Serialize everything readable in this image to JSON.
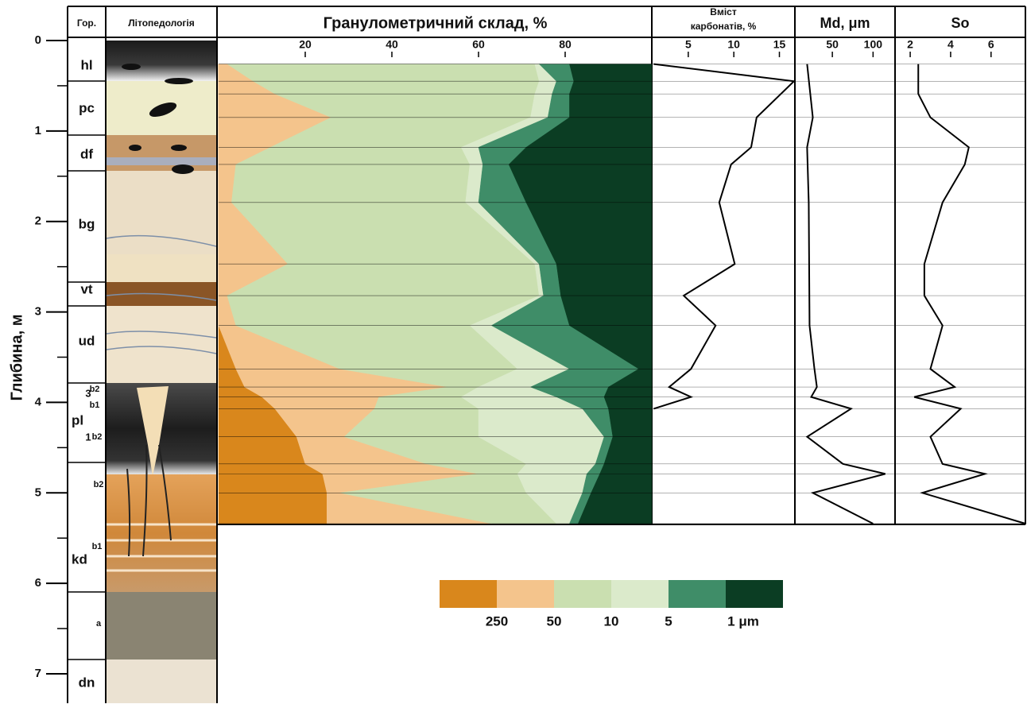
{
  "header": {
    "horizon": "Гор.",
    "lithology": "Літопедологія"
  },
  "depth_axis": {
    "label": "Глибина, м",
    "ylim": [
      0,
      7
    ],
    "yticks": [
      0,
      1,
      2,
      3,
      4,
      5,
      6,
      7
    ],
    "minor_ticks": [
      0.5,
      1.5,
      2.5,
      3.5,
      4.5,
      5.5,
      6.5
    ]
  },
  "horizons": [
    "hl",
    "pc",
    "df",
    "bg",
    "vt",
    "ud",
    "pl",
    "kd",
    "dn"
  ],
  "horizon_sublabels": [
    "b2",
    "3",
    "b1",
    "1",
    "b2",
    "b2",
    "b1",
    "a"
  ],
  "chart_data": [
    {
      "type": "stacked-area",
      "title": "Гранулометричний склад, %",
      "xlim": [
        0,
        100
      ],
      "xticks": [
        20,
        40,
        60,
        80
      ],
      "depth": [
        0.26,
        0.45,
        0.59,
        0.85,
        1.18,
        1.37,
        1.79,
        2.47,
        2.82,
        3.15,
        3.63,
        3.83,
        3.94,
        4.07,
        4.38,
        4.68,
        4.79,
        5.0,
        5.34
      ],
      "series": [
        {
          "color": "#d9871c",
          "values": [
            0,
            0,
            0,
            0,
            0,
            0,
            0,
            0,
            0,
            0,
            4,
            6,
            10,
            13,
            18,
            20,
            24,
            25,
            25
          ]
        },
        {
          "color": "#f4c48c",
          "values": [
            2,
            8,
            13,
            26,
            12,
            4,
            3,
            16,
            2,
            4,
            24,
            47,
            27,
            23,
            11,
            28,
            36,
            3,
            38
          ]
        },
        {
          "color": "#cadfb0",
          "values": [
            71,
            66,
            60,
            46,
            44,
            54,
            54,
            57,
            72,
            54,
            41,
            7,
            19,
            24,
            31,
            23,
            9,
            43,
            15
          ]
        },
        {
          "color": "#dbeacb",
          "values": [
            1,
            4,
            4,
            4,
            4,
            3,
            3,
            1,
            1,
            5,
            12,
            12,
            22,
            24,
            29,
            16,
            16,
            13,
            3
          ]
        },
        {
          "color": "#3f8d68",
          "values": [
            7,
            4,
            4,
            5,
            11,
            6,
            11,
            4,
            4,
            18,
            16,
            18,
            11,
            6,
            2,
            2,
            3,
            2,
            2
          ]
        },
        {
          "color": "#0b3d23",
          "values": [
            19,
            18,
            19,
            19,
            29,
            33,
            29,
            22,
            21,
            19,
            3,
            10,
            11,
            10,
            9,
            11,
            12,
            14,
            17
          ]
        }
      ],
      "legend_labels": [
        "250",
        "50",
        "10",
        "5",
        "1 μm"
      ]
    },
    {
      "type": "line",
      "title": [
        "Вміст",
        "карбонатів, %"
      ],
      "xlim": [
        1,
        16.7
      ],
      "xticks": [
        5,
        10,
        15
      ],
      "color": "#000000",
      "depth": [
        0.26,
        0.45,
        0.85,
        1.18,
        1.37,
        1.79,
        2.47,
        2.82,
        3.15,
        3.63,
        3.83,
        3.94,
        4.07
      ],
      "values": [
        1.2,
        16.6,
        12.5,
        11.9,
        9.7,
        8.4,
        10.1,
        4.5,
        8.0,
        5.3,
        2.9,
        5.3,
        1.2
      ]
    },
    {
      "type": "line",
      "title": "Md, μm",
      "xlim": [
        4,
        127
      ],
      "xticks": [
        50,
        100
      ],
      "color": "#000000",
      "depth": [
        0.26,
        0.85,
        1.18,
        1.79,
        3.15,
        3.63,
        3.83,
        3.94,
        4.07,
        4.38,
        4.68,
        4.79,
        5.0,
        5.34
      ],
      "values": [
        19,
        26,
        19,
        21,
        22,
        28,
        31,
        24,
        73,
        19,
        63,
        115,
        26,
        100
      ]
    },
    {
      "type": "line",
      "title": "So",
      "xlim": [
        1.25,
        7.7
      ],
      "xticks": [
        2,
        4,
        6
      ],
      "color": "#000000",
      "depth": [
        0.26,
        0.59,
        0.85,
        1.18,
        1.37,
        1.79,
        2.47,
        2.82,
        3.15,
        3.63,
        3.83,
        3.94,
        4.07,
        4.38,
        4.68,
        4.79,
        5.0,
        5.34
      ],
      "values": [
        2.4,
        2.4,
        3.0,
        4.9,
        4.7,
        3.6,
        2.7,
        2.7,
        3.6,
        3.0,
        4.2,
        2.2,
        4.5,
        3.0,
        3.6,
        5.7,
        2.6,
        7.7
      ]
    }
  ]
}
